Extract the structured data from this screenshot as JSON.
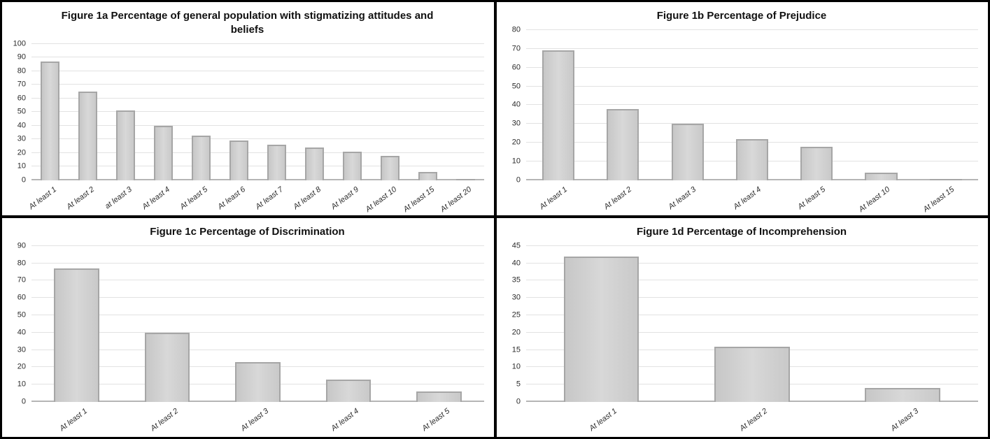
{
  "colors": {
    "bar_fill": "#cecece",
    "bar_fill_light": "#d8d8d8",
    "bar_border": "#a6a6a6",
    "gridline": "#e2e2e2",
    "axis_line": "#b5b5b5",
    "text": "#2b2b2b",
    "title_color": "#111111",
    "panel_border": "#000000",
    "background": "#ffffff"
  },
  "chart_data": [
    {
      "id": "fig1a",
      "type": "bar",
      "title": "Figure 1a Percentage of general population with stigmatizing attitudes and beliefs",
      "categories": [
        "At least 1",
        "At least 2",
        "at least 3",
        "At least 4",
        "At least 5",
        "At least 6",
        "At least 7",
        "At least 8",
        "At least 9",
        "At least 10",
        "At least 15",
        "At least 20"
      ],
      "values": [
        87,
        65,
        51,
        40,
        33,
        29,
        26,
        24,
        21,
        18,
        6,
        1
      ],
      "xlabel": "",
      "ylabel": "",
      "ylim": [
        0,
        100
      ],
      "yticks": [
        0,
        10,
        20,
        30,
        40,
        50,
        60,
        70,
        80,
        90,
        100
      ],
      "grid": true,
      "legend": false
    },
    {
      "id": "fig1b",
      "type": "bar",
      "title": "Figure 1b Percentage of Prejudice",
      "categories": [
        "At least 1",
        "At least 2",
        "At least 3",
        "At least 4",
        "At least 5",
        "At least 10",
        "At least 15"
      ],
      "values": [
        69,
        38,
        30,
        22,
        18,
        4,
        0.5
      ],
      "xlabel": "",
      "ylabel": "",
      "ylim": [
        0,
        80
      ],
      "yticks": [
        0,
        10,
        20,
        30,
        40,
        50,
        60,
        70,
        80
      ],
      "grid": true,
      "legend": false
    },
    {
      "id": "fig1c",
      "type": "bar",
      "title": "Figure 1c Percentage of Discrimination",
      "categories": [
        "At least 1",
        "At least 2",
        "At least 3",
        "At least 4",
        "At least 5"
      ],
      "values": [
        77,
        40,
        23,
        13,
        6
      ],
      "xlabel": "",
      "ylabel": "",
      "ylim": [
        0,
        90
      ],
      "yticks": [
        0,
        10,
        20,
        30,
        40,
        50,
        60,
        70,
        80,
        90
      ],
      "grid": true,
      "legend": false
    },
    {
      "id": "fig1d",
      "type": "bar",
      "title": "Figure 1d Percentage of Incomprehension",
      "categories": [
        "At least 1",
        "At least 2",
        "At least 3"
      ],
      "values": [
        42,
        16,
        4
      ],
      "xlabel": "",
      "ylabel": "",
      "ylim": [
        0,
        45
      ],
      "yticks": [
        0,
        5,
        10,
        15,
        20,
        25,
        30,
        35,
        40,
        45
      ],
      "grid": true,
      "legend": false
    }
  ]
}
